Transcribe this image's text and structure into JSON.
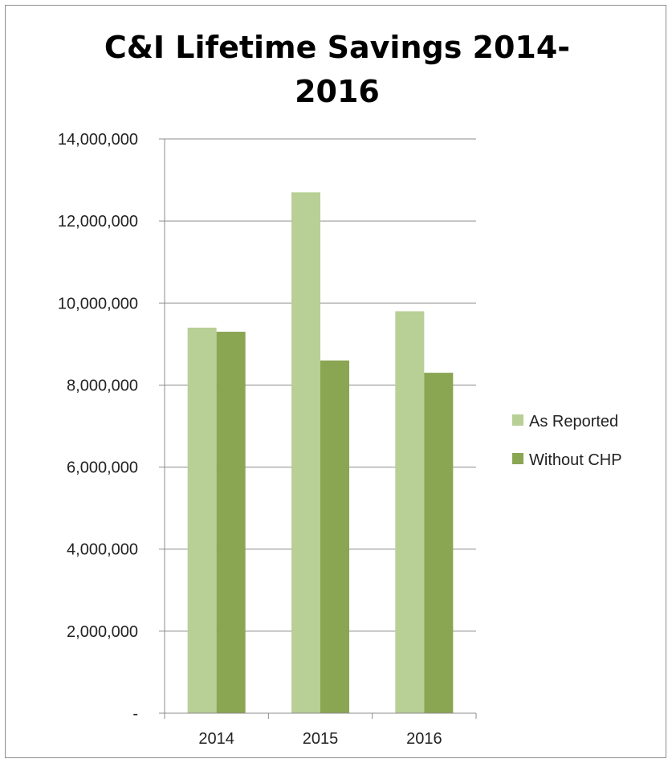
{
  "chart_data": {
    "type": "bar",
    "title_lines": [
      "C&I Lifetime Savings 2014-",
      "2016"
    ],
    "categories": [
      "2014",
      "2015",
      "2016"
    ],
    "series": [
      {
        "name": "As Reported",
        "values": [
          9400000,
          12700000,
          9800000
        ],
        "color": "#b8cf95"
      },
      {
        "name": "Without CHP",
        "values": [
          9300000,
          8600000,
          8300000
        ],
        "color": "#8aa653"
      }
    ],
    "ylim": [
      0,
      14000000
    ],
    "yticks": [
      0,
      2000000,
      4000000,
      6000000,
      8000000,
      10000000,
      12000000,
      14000000
    ],
    "ytick_labels": [
      "-",
      "2,000,000",
      "4,000,000",
      "6,000,000",
      "8,000,000",
      "10,000,000",
      "12,000,000",
      "14,000,000"
    ],
    "grid": true,
    "legend_position": "right"
  }
}
